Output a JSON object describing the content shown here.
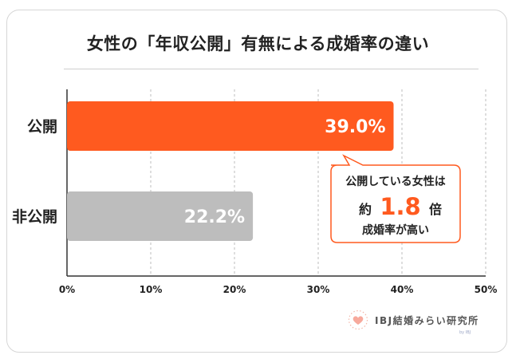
{
  "chart_data": {
    "type": "bar",
    "orientation": "horizontal",
    "title": "女性の「年収公開」有無による成婚率の違い",
    "categories": [
      "公開",
      "非公開"
    ],
    "values": [
      39.0,
      22.2
    ],
    "value_labels": [
      "39.0%",
      "22.2%"
    ],
    "bar_colors": [
      "#ff5a1f",
      "#bdbdbd"
    ],
    "xlim": [
      0,
      50
    ],
    "xticks": [
      0,
      10,
      20,
      30,
      40,
      50
    ],
    "xtick_labels": [
      "0%",
      "10%",
      "20%",
      "30%",
      "40%",
      "50%"
    ],
    "grid": "vertical dashed",
    "xlabel": "",
    "ylabel": ""
  },
  "callout": {
    "line1": "公開している女性は",
    "prefix": "約",
    "number": "1.8",
    "suffix": "倍",
    "line3": "成婚率が高い",
    "accent_color": "#ff5a1f"
  },
  "brand": {
    "name": "IBJ結婚みらい研究所",
    "sub": "by IBJ",
    "logo_icon": "heart-icon",
    "logo_color": "#f7a99c"
  }
}
